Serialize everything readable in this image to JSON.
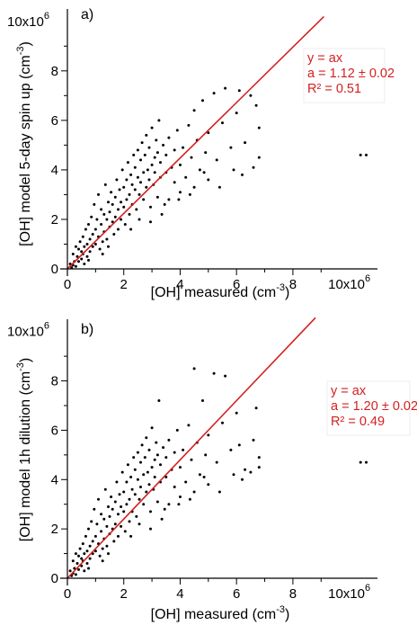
{
  "colors": {
    "points": "#000000",
    "fit": "#d42020",
    "axes": "#000000"
  },
  "chart_data": [
    {
      "type": "scatter",
      "panel_label": "a)",
      "xlabel": "[OH] measured (cm",
      "xlabel_exp": "-3",
      "xlabel_end": ")",
      "ylabel": "[OH] model 5-day spin up (cm",
      "ylabel_exp": "-3",
      "ylabel_end": ")",
      "x_axis_multiplier": "10x10",
      "x_axis_multiplier_exp": "6",
      "y_axis_multiplier": "10x10",
      "y_axis_multiplier_exp": "6",
      "xlim": [
        0,
        11
      ],
      "ylim": [
        0,
        10.5
      ],
      "xticks": [
        0,
        2,
        4,
        6,
        8
      ],
      "xtick_labels": [
        "0",
        "2",
        "4",
        "6",
        "8"
      ],
      "yticks": [
        0,
        2,
        4,
        6,
        8
      ],
      "ytick_labels": [
        "0",
        "2",
        "4",
        "6",
        "8"
      ],
      "fit": {
        "slope": 1.12,
        "x_range": [
          0,
          9.1
        ]
      },
      "fit_text": [
        "y = ax",
        "a = 1.12 ± 0.02",
        "R² = 0.51"
      ],
      "points": [
        [
          0.1,
          0.2
        ],
        [
          0.15,
          0.05
        ],
        [
          0.2,
          0.6
        ],
        [
          0.25,
          0.3
        ],
        [
          0.3,
          0.9
        ],
        [
          0.3,
          0.1
        ],
        [
          0.35,
          0.5
        ],
        [
          0.4,
          0.8
        ],
        [
          0.4,
          0.3
        ],
        [
          0.45,
          1.1
        ],
        [
          0.5,
          0.4
        ],
        [
          0.5,
          0.7
        ],
        [
          0.55,
          1.3
        ],
        [
          0.6,
          0.9
        ],
        [
          0.6,
          0.2
        ],
        [
          0.65,
          1.6
        ],
        [
          0.7,
          1.0
        ],
        [
          0.7,
          0.5
        ],
        [
          0.75,
          1.8
        ],
        [
          0.8,
          1.2
        ],
        [
          0.8,
          0.7
        ],
        [
          0.85,
          2.1
        ],
        [
          0.9,
          1.4
        ],
        [
          0.9,
          0.9
        ],
        [
          0.95,
          2.6
        ],
        [
          1.0,
          1.6
        ],
        [
          1.0,
          1.0
        ],
        [
          1.05,
          2.0
        ],
        [
          1.1,
          1.3
        ],
        [
          1.1,
          3.0
        ],
        [
          1.15,
          0.8
        ],
        [
          1.2,
          1.8
        ],
        [
          1.2,
          2.4
        ],
        [
          1.25,
          1.1
        ],
        [
          1.3,
          2.2
        ],
        [
          1.3,
          1.5
        ],
        [
          1.35,
          3.4
        ],
        [
          1.4,
          2.0
        ],
        [
          1.4,
          1.2
        ],
        [
          1.45,
          2.7
        ],
        [
          1.5,
          1.7
        ],
        [
          1.5,
          2.3
        ],
        [
          1.55,
          3.1
        ],
        [
          1.6,
          1.9
        ],
        [
          1.6,
          2.6
        ],
        [
          1.65,
          1.4
        ],
        [
          1.7,
          2.9
        ],
        [
          1.7,
          2.1
        ],
        [
          1.75,
          3.6
        ],
        [
          1.8,
          2.4
        ],
        [
          1.8,
          1.6
        ],
        [
          1.85,
          3.2
        ],
        [
          1.9,
          2.7
        ],
        [
          1.9,
          2.0
        ],
        [
          1.95,
          4.0
        ],
        [
          2.0,
          2.5
        ],
        [
          2.0,
          3.3
        ],
        [
          2.05,
          1.8
        ],
        [
          2.1,
          3.6
        ],
        [
          2.1,
          2.8
        ],
        [
          2.15,
          4.3
        ],
        [
          2.2,
          3.0
        ],
        [
          2.2,
          2.2
        ],
        [
          2.25,
          3.8
        ],
        [
          2.3,
          3.4
        ],
        [
          2.3,
          2.6
        ],
        [
          2.35,
          4.6
        ],
        [
          2.4,
          3.2
        ],
        [
          2.4,
          4.1
        ],
        [
          2.45,
          2.4
        ],
        [
          2.5,
          3.7
        ],
        [
          2.5,
          4.8
        ],
        [
          2.55,
          3.0
        ],
        [
          2.6,
          4.4
        ],
        [
          2.6,
          3.5
        ],
        [
          2.65,
          5.1
        ],
        [
          2.7,
          3.9
        ],
        [
          2.7,
          2.8
        ],
        [
          2.75,
          4.6
        ],
        [
          2.8,
          3.3
        ],
        [
          2.8,
          5.4
        ],
        [
          2.85,
          4.0
        ],
        [
          2.9,
          3.6
        ],
        [
          2.9,
          4.9
        ],
        [
          2.95,
          2.5
        ],
        [
          3.0,
          4.2
        ],
        [
          3.0,
          5.7
        ],
        [
          3.05,
          3.4
        ],
        [
          3.1,
          4.5
        ],
        [
          3.1,
          3.9
        ],
        [
          3.15,
          5.2
        ],
        [
          3.2,
          2.9
        ],
        [
          3.2,
          4.7
        ],
        [
          3.25,
          6.0
        ],
        [
          3.3,
          3.7
        ],
        [
          3.3,
          4.3
        ],
        [
          3.35,
          2.2
        ],
        [
          3.4,
          5.0
        ],
        [
          3.5,
          3.9
        ],
        [
          3.5,
          4.6
        ],
        [
          3.6,
          2.8
        ],
        [
          3.6,
          5.3
        ],
        [
          3.7,
          4.1
        ],
        [
          3.8,
          3.5
        ],
        [
          3.8,
          4.8
        ],
        [
          3.9,
          5.6
        ],
        [
          4.0,
          4.2
        ],
        [
          4.0,
          3.1
        ],
        [
          4.1,
          4.9
        ],
        [
          4.2,
          3.7
        ],
        [
          4.3,
          5.8
        ],
        [
          4.4,
          4.5
        ],
        [
          4.5,
          6.4
        ],
        [
          4.5,
          3.3
        ],
        [
          4.6,
          5.2
        ],
        [
          4.7,
          4.0
        ],
        [
          4.8,
          6.8
        ],
        [
          4.9,
          4.7
        ],
        [
          5.0,
          5.5
        ],
        [
          5.0,
          3.6
        ],
        [
          5.2,
          7.1
        ],
        [
          5.3,
          4.4
        ],
        [
          5.5,
          5.9
        ],
        [
          5.6,
          7.3
        ],
        [
          5.8,
          4.9
        ],
        [
          6.0,
          6.3
        ],
        [
          6.1,
          7.2
        ],
        [
          6.3,
          5.1
        ],
        [
          6.5,
          7.0
        ],
        [
          6.6,
          4.1
        ],
        [
          6.7,
          6.6
        ],
        [
          6.8,
          5.7
        ],
        [
          6.8,
          4.5
        ],
        [
          10.4,
          4.6
        ],
        [
          10.6,
          4.6
        ],
        [
          0.2,
          0.15
        ],
        [
          0.55,
          0.6
        ],
        [
          0.75,
          0.35
        ],
        [
          1.25,
          0.6
        ],
        [
          1.45,
          0.9
        ],
        [
          2.25,
          1.6
        ],
        [
          2.55,
          2.0
        ],
        [
          2.95,
          1.9
        ],
        [
          3.45,
          2.6
        ],
        [
          3.95,
          2.8
        ],
        [
          4.35,
          3.0
        ],
        [
          4.85,
          3.9
        ],
        [
          5.4,
          3.3
        ],
        [
          5.9,
          4.0
        ],
        [
          6.2,
          3.8
        ]
      ]
    },
    {
      "type": "scatter",
      "panel_label": "b)",
      "xlabel": "[OH] measured (cm",
      "xlabel_exp": "-3",
      "xlabel_end": ")",
      "ylabel": "[OH] model 1h dilution (cm",
      "ylabel_exp": "-3",
      "ylabel_end": ")",
      "x_axis_multiplier": "10x10",
      "x_axis_multiplier_exp": "6",
      "y_axis_multiplier": "10x10",
      "y_axis_multiplier_exp": "6",
      "xlim": [
        0,
        11
      ],
      "ylim": [
        0,
        10.5
      ],
      "xticks": [
        0,
        2,
        4,
        6,
        8
      ],
      "xtick_labels": [
        "0",
        "2",
        "4",
        "6",
        "8"
      ],
      "yticks": [
        0,
        2,
        4,
        6,
        8
      ],
      "ytick_labels": [
        "0",
        "2",
        "4",
        "6",
        "8"
      ],
      "fit": {
        "slope": 1.2,
        "x_range": [
          0,
          8.8
        ]
      },
      "fit_text": [
        "y = ax",
        "a = 1.20 ± 0.02",
        "R² = 0.49"
      ],
      "points": [
        [
          0.1,
          0.3
        ],
        [
          0.15,
          0.1
        ],
        [
          0.2,
          0.7
        ],
        [
          0.25,
          0.4
        ],
        [
          0.3,
          1.0
        ],
        [
          0.3,
          0.15
        ],
        [
          0.35,
          0.6
        ],
        [
          0.4,
          0.9
        ],
        [
          0.4,
          0.35
        ],
        [
          0.45,
          1.2
        ],
        [
          0.5,
          0.5
        ],
        [
          0.5,
          0.8
        ],
        [
          0.55,
          1.4
        ],
        [
          0.6,
          1.0
        ],
        [
          0.6,
          0.3
        ],
        [
          0.65,
          1.7
        ],
        [
          0.7,
          1.1
        ],
        [
          0.7,
          0.6
        ],
        [
          0.75,
          2.0
        ],
        [
          0.8,
          1.3
        ],
        [
          0.8,
          0.8
        ],
        [
          0.85,
          2.3
        ],
        [
          0.9,
          1.5
        ],
        [
          0.9,
          1.0
        ],
        [
          0.95,
          2.8
        ],
        [
          1.0,
          1.7
        ],
        [
          1.0,
          1.1
        ],
        [
          1.05,
          2.2
        ],
        [
          1.1,
          1.4
        ],
        [
          1.1,
          3.2
        ],
        [
          1.15,
          0.9
        ],
        [
          1.2,
          1.9
        ],
        [
          1.2,
          2.6
        ],
        [
          1.25,
          1.2
        ],
        [
          1.3,
          2.4
        ],
        [
          1.3,
          1.6
        ],
        [
          1.35,
          3.6
        ],
        [
          1.4,
          2.1
        ],
        [
          1.4,
          1.3
        ],
        [
          1.45,
          2.9
        ],
        [
          1.5,
          1.8
        ],
        [
          1.5,
          2.5
        ],
        [
          1.55,
          3.3
        ],
        [
          1.6,
          2.0
        ],
        [
          1.6,
          2.8
        ],
        [
          1.65,
          1.5
        ],
        [
          1.7,
          3.1
        ],
        [
          1.7,
          2.2
        ],
        [
          1.75,
          3.9
        ],
        [
          1.8,
          2.6
        ],
        [
          1.8,
          1.7
        ],
        [
          1.85,
          3.4
        ],
        [
          1.9,
          2.9
        ],
        [
          1.9,
          2.1
        ],
        [
          1.95,
          4.3
        ],
        [
          2.0,
          2.7
        ],
        [
          2.0,
          3.5
        ],
        [
          2.05,
          1.9
        ],
        [
          2.1,
          3.9
        ],
        [
          2.1,
          3.0
        ],
        [
          2.15,
          4.6
        ],
        [
          2.2,
          3.2
        ],
        [
          2.2,
          2.3
        ],
        [
          2.25,
          4.1
        ],
        [
          2.3,
          3.6
        ],
        [
          2.3,
          2.7
        ],
        [
          2.35,
          4.9
        ],
        [
          2.4,
          3.4
        ],
        [
          2.4,
          4.4
        ],
        [
          2.45,
          2.5
        ],
        [
          2.5,
          4.0
        ],
        [
          2.5,
          5.1
        ],
        [
          2.55,
          3.2
        ],
        [
          2.6,
          4.7
        ],
        [
          2.6,
          3.7
        ],
        [
          2.65,
          5.4
        ],
        [
          2.7,
          4.2
        ],
        [
          2.7,
          3.0
        ],
        [
          2.75,
          4.9
        ],
        [
          2.8,
          3.5
        ],
        [
          2.8,
          5.7
        ],
        [
          2.85,
          4.3
        ],
        [
          2.9,
          3.8
        ],
        [
          2.9,
          5.2
        ],
        [
          2.95,
          2.7
        ],
        [
          3.0,
          4.5
        ],
        [
          3.0,
          6.1
        ],
        [
          3.05,
          3.6
        ],
        [
          3.1,
          4.8
        ],
        [
          3.1,
          4.1
        ],
        [
          3.15,
          5.5
        ],
        [
          3.2,
          3.1
        ],
        [
          3.2,
          5.0
        ],
        [
          3.25,
          7.2
        ],
        [
          3.3,
          3.9
        ],
        [
          3.3,
          4.6
        ],
        [
          3.35,
          2.4
        ],
        [
          3.4,
          5.3
        ],
        [
          3.5,
          4.1
        ],
        [
          3.5,
          4.9
        ],
        [
          3.6,
          3.0
        ],
        [
          3.6,
          5.6
        ],
        [
          3.7,
          4.4
        ],
        [
          3.8,
          3.7
        ],
        [
          3.8,
          5.1
        ],
        [
          3.9,
          6.0
        ],
        [
          4.0,
          4.5
        ],
        [
          4.0,
          3.3
        ],
        [
          4.1,
          5.2
        ],
        [
          4.2,
          3.9
        ],
        [
          4.3,
          6.2
        ],
        [
          4.4,
          4.8
        ],
        [
          4.5,
          8.5
        ],
        [
          4.5,
          3.5
        ],
        [
          4.6,
          5.5
        ],
        [
          4.7,
          4.2
        ],
        [
          4.8,
          7.2
        ],
        [
          4.9,
          5.0
        ],
        [
          5.0,
          5.8
        ],
        [
          5.0,
          3.8
        ],
        [
          5.2,
          8.3
        ],
        [
          5.3,
          4.7
        ],
        [
          5.5,
          6.3
        ],
        [
          5.6,
          8.2
        ],
        [
          5.8,
          5.2
        ],
        [
          6.0,
          6.7
        ],
        [
          6.1,
          5.4
        ],
        [
          6.3,
          4.4
        ],
        [
          6.5,
          4.3
        ],
        [
          6.6,
          5.6
        ],
        [
          6.7,
          6.9
        ],
        [
          6.8,
          4.9
        ],
        [
          6.8,
          4.5
        ],
        [
          10.4,
          4.7
        ],
        [
          10.6,
          4.7
        ],
        [
          0.2,
          0.2
        ],
        [
          0.55,
          0.7
        ],
        [
          0.75,
          0.4
        ],
        [
          1.25,
          0.7
        ],
        [
          1.45,
          1.0
        ],
        [
          2.25,
          1.7
        ],
        [
          2.55,
          2.2
        ],
        [
          2.95,
          2.0
        ],
        [
          3.45,
          2.8
        ],
        [
          3.95,
          3.0
        ],
        [
          4.35,
          3.2
        ],
        [
          4.85,
          4.1
        ],
        [
          5.4,
          3.5
        ],
        [
          5.9,
          4.2
        ],
        [
          6.2,
          4.0
        ]
      ]
    }
  ]
}
